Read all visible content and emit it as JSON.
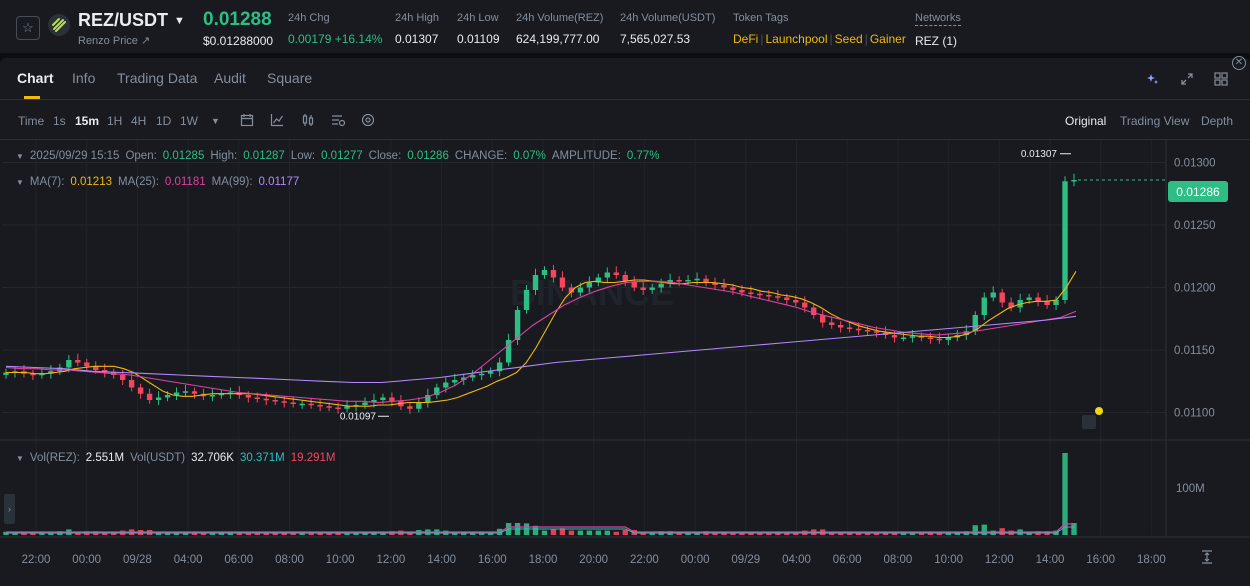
{
  "header": {
    "pair": "REZ/USDT",
    "subtitle": "Renzo Price ↗",
    "last_price": "0.01288",
    "last_price_usd": "$0.01288000",
    "stats": [
      {
        "label": "24h Chg",
        "value": "0.00179 +16.14%"
      },
      {
        "label": "24h High",
        "value": "0.01307"
      },
      {
        "label": "24h Low",
        "value": "0.01109"
      },
      {
        "label": "24h Volume(REZ)",
        "value": "624,199,777.00"
      },
      {
        "label": "24h Volume(USDT)",
        "value": "7,565,027.53"
      }
    ],
    "token_tags_label": "Token Tags",
    "token_tags": [
      "DeFi",
      "Launchpool",
      "Seed",
      "Gainer"
    ],
    "networks_label": "Networks",
    "networks_value": "REZ (1)"
  },
  "tabs": [
    "Chart",
    "Info",
    "Trading Data",
    "Audit",
    "Square"
  ],
  "toolbar": {
    "timeframes": [
      "Time",
      "1s",
      "15m",
      "1H",
      "4H",
      "1D",
      "1W"
    ],
    "active_timeframe": "15m",
    "views": [
      "Original",
      "Trading View",
      "Depth"
    ],
    "active_view": "Original"
  },
  "ohlc": {
    "date": "2025/09/29 15:15",
    "open_label": "Open:",
    "open": "0.01285",
    "high_label": "High:",
    "high": "0.01287",
    "low_label": "Low:",
    "low": "0.01277",
    "close_label": "Close:",
    "close": "0.01286",
    "change_label": "CHANGE:",
    "change": "0.07%",
    "amplitude_label": "AMPLITUDE:",
    "amplitude": "0.77%"
  },
  "ma": {
    "ma7_label": "MA(7):",
    "ma7": "0.01213",
    "ma25_label": "MA(25):",
    "ma25": "0.01181",
    "ma99_label": "MA(99):",
    "ma99": "0.01177"
  },
  "volume": {
    "rez_label": "Vol(REZ):",
    "rez": "2.551M",
    "usdt_label": "Vol(USDT)",
    "usdt": "32.706K",
    "v1": "30.371M",
    "v2": "19.291M"
  },
  "chart_data": {
    "type": "candlestick",
    "price_axis": [
      "0.01300",
      "0.01250",
      "0.01200",
      "0.01150",
      "0.01100"
    ],
    "volume_axis": [
      "100M"
    ],
    "time_axis": [
      "22:00",
      "00:00",
      "09/28",
      "04:00",
      "06:00",
      "08:00",
      "10:00",
      "12:00",
      "14:00",
      "16:00",
      "18:00",
      "20:00",
      "22:00",
      "00:00",
      "09/29",
      "04:00",
      "06:00",
      "08:00",
      "10:00",
      "12:00",
      "14:00",
      "16:00",
      "18:00"
    ],
    "current_price": "0.01286",
    "high_marker": "0.01307",
    "low_marker": "0.01097",
    "ylim": [
      0.01078,
      0.01318
    ],
    "close_series": [
      0.01132,
      0.01133,
      0.01131,
      0.0113,
      0.01131,
      0.01133,
      0.01136,
      0.01142,
      0.0114,
      0.01137,
      0.01134,
      0.01132,
      0.0113,
      0.01126,
      0.0112,
      0.01115,
      0.0111,
      0.01112,
      0.01114,
      0.01116,
      0.01117,
      0.01115,
      0.01113,
      0.01114,
      0.01115,
      0.01116,
      0.01114,
      0.01112,
      0.01111,
      0.0111,
      0.01109,
      0.01108,
      0.01107,
      0.01107,
      0.01106,
      0.01105,
      0.01104,
      0.01103,
      0.01105,
      0.01106,
      0.01108,
      0.0111,
      0.01112,
      0.01109,
      0.01105,
      0.01103,
      0.01108,
      0.01114,
      0.0112,
      0.01124,
      0.01126,
      0.01128,
      0.0113,
      0.01131,
      0.01133,
      0.0114,
      0.01158,
      0.01182,
      0.01198,
      0.0121,
      0.01214,
      0.01208,
      0.012,
      0.01196,
      0.012,
      0.01204,
      0.01208,
      0.01212,
      0.0121,
      0.01205,
      0.012,
      0.01198,
      0.012,
      0.01203,
      0.01206,
      0.01205,
      0.01206,
      0.01207,
      0.01204,
      0.01202,
      0.012,
      0.01198,
      0.01196,
      0.01195,
      0.01194,
      0.01193,
      0.01192,
      0.0119,
      0.01188,
      0.01184,
      0.01178,
      0.01172,
      0.0117,
      0.01168,
      0.01167,
      0.01166,
      0.01165,
      0.01164,
      0.01162,
      0.0116,
      0.0116,
      0.01161,
      0.0116,
      0.01159,
      0.01158,
      0.0116,
      0.01162,
      0.01165,
      0.01178,
      0.01192,
      0.01196,
      0.01188,
      0.01184,
      0.0119,
      0.01192,
      0.01189,
      0.01186,
      0.0119,
      0.01285,
      0.01286
    ],
    "ma7_series": [
      0.01132,
      0.01132,
      0.01132,
      0.01131,
      0.01131,
      0.01132,
      0.01133,
      0.01135,
      0.01136,
      0.01137,
      0.01137,
      0.01137,
      0.01135,
      0.01132,
      0.01127,
      0.01122,
      0.01117,
      0.01114,
      0.01113,
      0.01113,
      0.01114,
      0.01115,
      0.01115,
      0.01115,
      0.01115,
      0.01115,
      0.01114,
      0.01113,
      0.01112,
      0.01111,
      0.0111,
      0.01109,
      0.01108,
      0.01107,
      0.01106,
      0.01105,
      0.01105,
      0.01105,
      0.01106,
      0.01106,
      0.01107,
      0.01108,
      0.01108,
      0.01108,
      0.01109,
      0.0111,
      0.01112,
      0.01115,
      0.01118,
      0.01121,
      0.01125,
      0.01128,
      0.01132,
      0.0114,
      0.01152,
      0.01166,
      0.0118,
      0.01192,
      0.012,
      0.01204,
      0.01205,
      0.01204,
      0.01204,
      0.01205,
      0.01206,
      0.01206,
      0.01205,
      0.01204,
      0.01203,
      0.01203,
      0.01204,
      0.01204,
      0.01204,
      0.01203,
      0.01202,
      0.012,
      0.01199,
      0.01197,
      0.01196,
      0.01194,
      0.01193,
      0.01191,
      0.01188,
      0.01184,
      0.01179,
      0.01175,
      0.01172,
      0.01169,
      0.01167,
      0.01165,
      0.01164,
      0.01163,
      0.01162,
      0.01161,
      0.01161,
      0.0116,
      0.0116,
      0.01161,
      0.01163,
      0.01167,
      0.01173,
      0.01178,
      0.01183,
      0.01186,
      0.01188,
      0.01189,
      0.01189,
      0.0119,
      0.012,
      0.01213
    ],
    "ma25_series": [
      0.01136,
      0.01135,
      0.01135,
      0.01134,
      0.01134,
      0.01133,
      0.01132,
      0.01131,
      0.0113,
      0.01128,
      0.01126,
      0.01124,
      0.01122,
      0.0112,
      0.01118,
      0.01116,
      0.01115,
      0.01114,
      0.01113,
      0.01112,
      0.01111,
      0.0111,
      0.01109,
      0.01109,
      0.01108,
      0.01109,
      0.0111,
      0.01112,
      0.01116,
      0.01122,
      0.0113,
      0.0114,
      0.0115,
      0.0116,
      0.0117,
      0.01178,
      0.01186,
      0.01192,
      0.01197,
      0.01201,
      0.01204,
      0.01205,
      0.01205,
      0.01204,
      0.01202,
      0.012,
      0.01198,
      0.01196,
      0.01193,
      0.0119,
      0.01187,
      0.01184,
      0.0118,
      0.01177,
      0.01174,
      0.01171,
      0.01168,
      0.01166,
      0.01164,
      0.01163,
      0.01162,
      0.01163,
      0.01164,
      0.01166,
      0.01168,
      0.0117,
      0.01172,
      0.01174,
      0.01176,
      0.01181
    ],
    "ma99_series": [
      0.01137,
      0.01136,
      0.01135,
      0.01133,
      0.01132,
      0.01131,
      0.0113,
      0.01129,
      0.01128,
      0.01127,
      0.01126,
      0.01125,
      0.01124,
      0.01124,
      0.01126,
      0.01128,
      0.01131,
      0.01134,
      0.01137,
      0.0114,
      0.01142,
      0.01144,
      0.01146,
      0.01148,
      0.0115,
      0.01152,
      0.01154,
      0.01156,
      0.01158,
      0.0116,
      0.01162,
      0.01164,
      0.01166,
      0.01168,
      0.0117,
      0.01172,
      0.01174,
      0.01177
    ]
  },
  "colors": {
    "up": "#2ebd85",
    "down": "#f6465d",
    "ma7": "#f0b90b",
    "ma25": "#e040a0",
    "ma99": "#b388ff",
    "accent": "#f0b90b"
  },
  "watermark": "BINANCE"
}
